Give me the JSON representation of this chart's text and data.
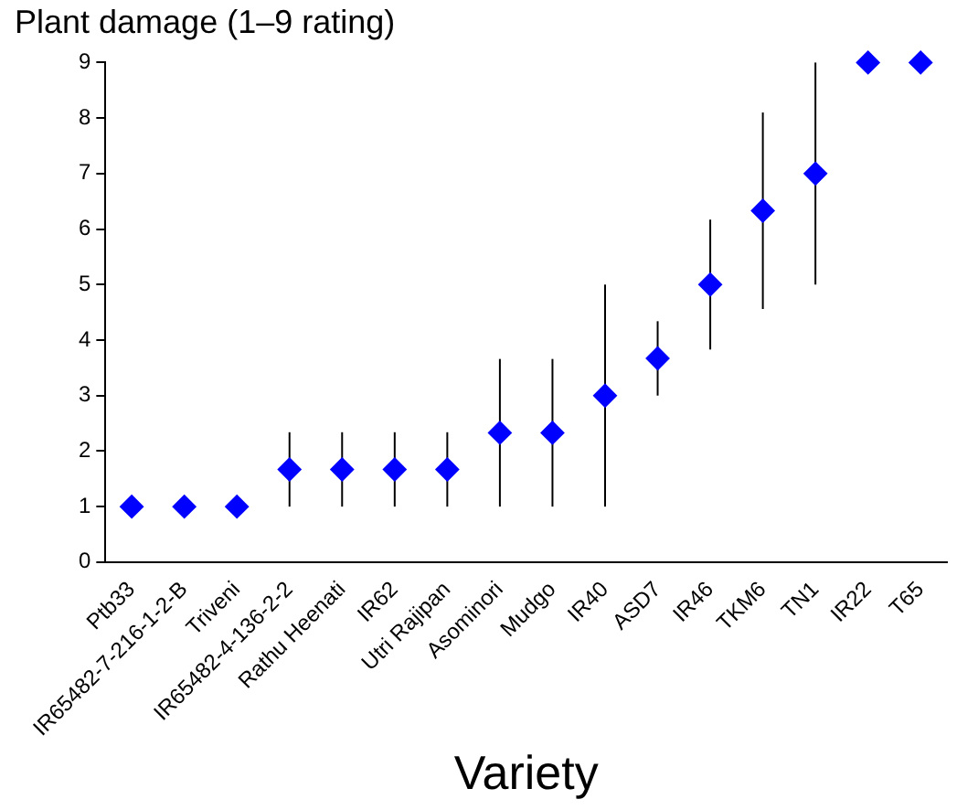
{
  "chart_data": {
    "type": "scatter",
    "ylabel": "Plant damage (1–9 rating)",
    "xlabel": "Variety",
    "categories": [
      "Ptb33",
      "IR65482-7-216-1-2-B",
      "Triveni",
      "IR65482-4-136-2-2",
      "Rathu Heenati",
      "IR62",
      "Utri Rajipan",
      "Asominori",
      "Mudgo",
      "IR40",
      "ASD7",
      "IR46",
      "TKM6",
      "TN1",
      "IR22",
      "T65"
    ],
    "series": [
      {
        "color": "#0000ff",
        "values": [
          1,
          1,
          1,
          1.67,
          1.67,
          1.67,
          1.67,
          2.33,
          2.33,
          3,
          3.67,
          5,
          6.33,
          7,
          9,
          9
        ],
        "errors": [
          null,
          null,
          null,
          0.67,
          0.67,
          0.67,
          0.67,
          1.33,
          1.33,
          2,
          0.67,
          1.17,
          1.77,
          2,
          null,
          null
        ]
      }
    ],
    "ylim": [
      0,
      9
    ],
    "yticks": [
      0,
      1,
      2,
      3,
      4,
      5,
      6,
      7,
      8,
      9
    ],
    "marker": "diamond",
    "grid": false,
    "legend": false
  }
}
